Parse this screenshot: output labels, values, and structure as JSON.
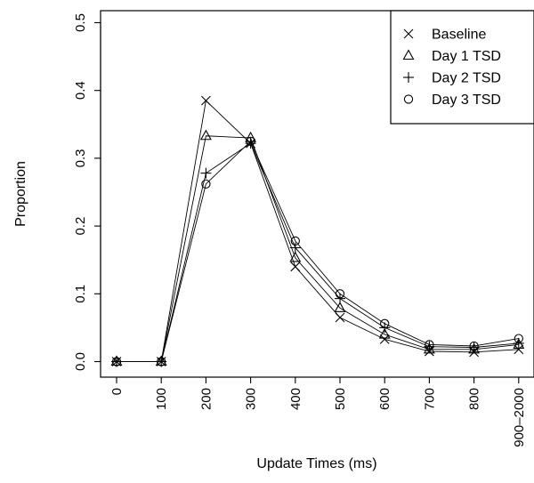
{
  "chart_data": {
    "type": "line",
    "title": "",
    "xlabel": "Update Times (ms)",
    "ylabel": "Proportion",
    "categories": [
      "0",
      "100",
      "200",
      "300",
      "400",
      "500",
      "600",
      "700",
      "800",
      "900–2000"
    ],
    "ylim": [
      0,
      0.5
    ],
    "yticks": [
      "0.0",
      "0.1",
      "0.2",
      "0.3",
      "0.4",
      "0.5"
    ],
    "grid": false,
    "legend_position": "top-right",
    "series": [
      {
        "name": "Baseline",
        "marker": "cross",
        "values": [
          0.0,
          0.0,
          0.385,
          0.322,
          0.14,
          0.065,
          0.033,
          0.015,
          0.014,
          0.018
        ]
      },
      {
        "name": "Day 1 TSD",
        "marker": "triangle",
        "values": [
          0.0,
          0.0,
          0.333,
          0.33,
          0.153,
          0.079,
          0.04,
          0.018,
          0.018,
          0.025
        ]
      },
      {
        "name": "Day 2 TSD",
        "marker": "plus",
        "values": [
          0.0,
          0.0,
          0.278,
          0.322,
          0.168,
          0.093,
          0.05,
          0.022,
          0.021,
          0.027
        ]
      },
      {
        "name": "Day 3 TSD",
        "marker": "circle",
        "values": [
          0.0,
          0.0,
          0.262,
          0.325,
          0.178,
          0.1,
          0.056,
          0.025,
          0.023,
          0.034
        ]
      }
    ]
  }
}
